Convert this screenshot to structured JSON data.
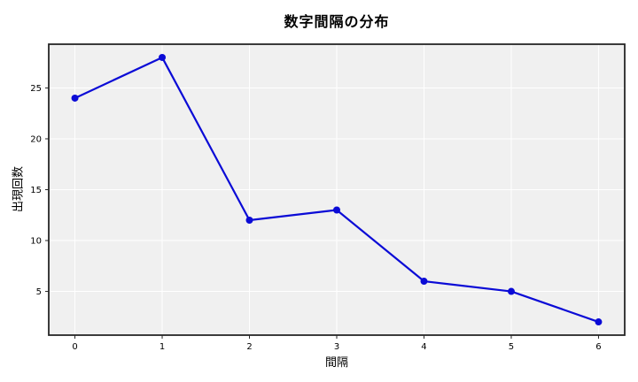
{
  "figure": {
    "background_color": "#ffffff"
  },
  "chart_data": {
    "type": "line",
    "title": "数字間隔の分布",
    "xlabel": "間隔",
    "ylabel": "出現回数",
    "x": [
      0,
      1,
      2,
      3,
      4,
      5,
      6
    ],
    "y": [
      24,
      28,
      12,
      13,
      6,
      5,
      2
    ],
    "xticks": [
      "0",
      "1",
      "2",
      "3",
      "4",
      "5",
      "6"
    ],
    "xtick_values": [
      0,
      1,
      2,
      3,
      4,
      5,
      6
    ],
    "yticks": [
      "5",
      "10",
      "15",
      "20",
      "25"
    ],
    "ytick_values": [
      5,
      10,
      15,
      20,
      25
    ],
    "xlim": [
      -0.3,
      6.3
    ],
    "ylim": [
      0.7,
      29.3
    ],
    "grid": true,
    "legend": false,
    "line_color": "#0b0bd6",
    "marker": "circle",
    "marker_radius": 4,
    "plot_bg_color": "#f0f0f0",
    "grid_color": "#ffffff",
    "spine_color": "#262626",
    "tick_color": "#262626",
    "text_color": "#000000"
  }
}
